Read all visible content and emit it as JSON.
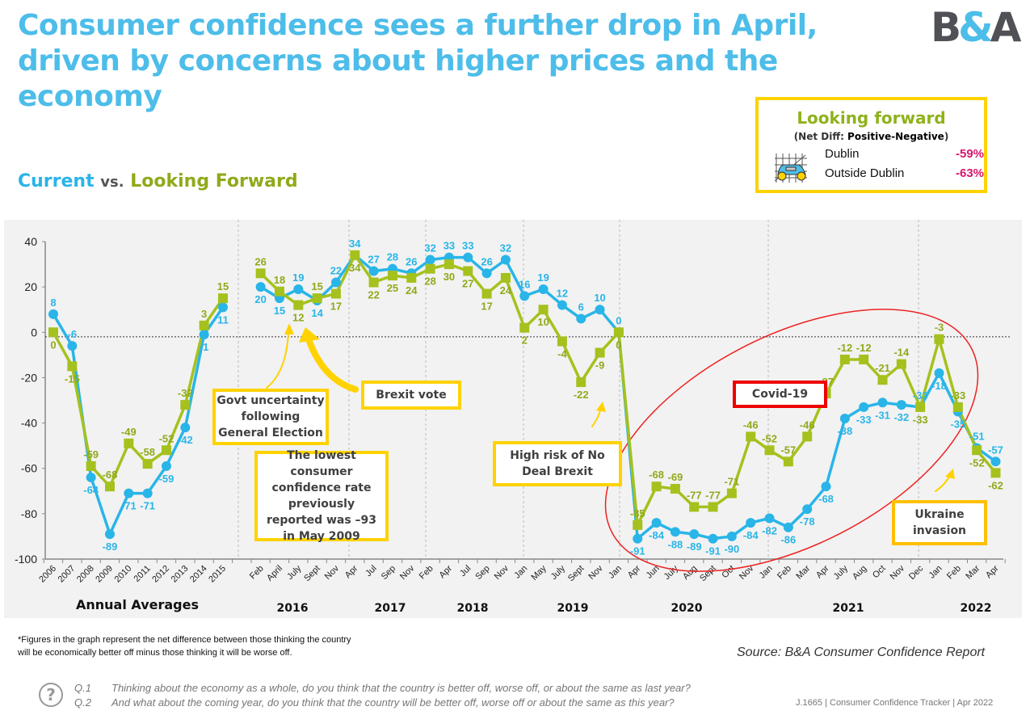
{
  "header": {
    "title": "Consumer confidence sees a further drop in April, driven by concerns about higher prices and the economy",
    "logo": "B&A"
  },
  "legend": {
    "current": "Current",
    "vs": "vs.",
    "forward": "Looking Forward"
  },
  "forward_box": {
    "title": "Looking forward",
    "subtitle_prefix": "(Net Diff: ",
    "subtitle_bold": "Positive-Negative",
    "subtitle_suffix": ")",
    "icon": "car-chart-icon",
    "rows": [
      {
        "label": "Dublin",
        "value": "-59%"
      },
      {
        "label": "Outside Dublin",
        "value": "-63%"
      }
    ]
  },
  "annotations": {
    "govt": "Govt uncertainty following General Election",
    "brexit": "Brexit vote",
    "lowest": "The lowest consumer confidence rate previously reported was –93 in May 2009",
    "nodeal": "High risk of No Deal Brexit",
    "covid": "Covid-19",
    "ukraine": "Ukraine invasion"
  },
  "chart_data": {
    "type": "line",
    "ylim": [
      -100,
      40
    ],
    "yticks": [
      40,
      20,
      0,
      -20,
      -40,
      -60,
      -80,
      -100
    ],
    "grid": false,
    "colors": {
      "current": "#29b5e8",
      "forward": "#a5c11d",
      "forward_label": "#8faa1a"
    },
    "groups": [
      {
        "label": "Annual Averages",
        "categories": [
          "2006",
          "2007",
          "2008",
          "2009",
          "2010",
          "2011",
          "2012",
          "2013",
          "2014",
          "2015"
        ],
        "current": [
          8,
          -6,
          -64,
          -89,
          -71,
          -71,
          -59,
          -42,
          -1,
          11
        ],
        "forward": [
          0,
          -15,
          -59,
          -68,
          -49,
          -58,
          -52,
          -32,
          3,
          15
        ]
      },
      {
        "label": "2016",
        "categories": [
          "Feb",
          "April",
          "July",
          "Sept",
          "Nov"
        ],
        "current": [
          20,
          15,
          19,
          14,
          22
        ],
        "forward": [
          26,
          18,
          12,
          15,
          17
        ]
      },
      {
        "label": "2017",
        "categories": [
          "Apr",
          "Jul",
          "Sep",
          "Nov"
        ],
        "current": [
          34,
          27,
          28,
          26
        ],
        "forward": [
          34,
          22,
          25,
          24
        ]
      },
      {
        "label": "2018",
        "categories": [
          "Feb",
          "Apr",
          "Jul",
          "Sep",
          "Nov"
        ],
        "current": [
          32,
          33,
          33,
          26,
          32
        ],
        "forward": [
          28,
          30,
          27,
          17,
          24
        ]
      },
      {
        "label": "2019",
        "categories": [
          "Jan",
          "May",
          "July",
          "Sept",
          "Nov"
        ],
        "current": [
          16,
          19,
          12,
          6,
          10
        ],
        "forward": [
          2,
          10,
          -4,
          -22,
          -9
        ]
      },
      {
        "label": "2020",
        "categories": [
          "Jan",
          "Apr",
          "Jun",
          "July",
          "Aug",
          "Sept",
          "Oct",
          "Nov"
        ],
        "current": [
          0,
          -91,
          -84,
          -88,
          -89,
          -91,
          -90,
          -84
        ],
        "forward": [
          0,
          -85,
          -68,
          -69,
          -77,
          -77,
          -71,
          -46
        ]
      },
      {
        "label": "2021",
        "categories": [
          "Jan",
          "Feb",
          "Mar",
          "Apr",
          "July",
          "Aug",
          "Oct",
          "Nov",
          "Dec"
        ],
        "current": [
          -82,
          -86,
          -78,
          -68,
          -38,
          -33,
          -31,
          -32,
          -33
        ],
        "forward": [
          -52,
          -57,
          -46,
          -27,
          -12,
          -12,
          -21,
          -14,
          -33
        ]
      },
      {
        "label": "2022",
        "categories": [
          "Jan",
          "Feb",
          "Mar",
          "Apr"
        ],
        "current": [
          -18,
          -35,
          -51,
          -57
        ],
        "forward": [
          -3,
          -33,
          -52,
          -62
        ]
      }
    ]
  },
  "footer": {
    "note1": "*Figures in the graph represent the net difference between those thinking the country",
    "note2": "will be economically better off minus those thinking it will be worse off.",
    "source": "Source: B&A Consumer Confidence Report",
    "q1_num": "Q.1",
    "q1": "Thinking about the economy as a whole, do you think that the country is better off, worse off, or about the same as last year?",
    "q2_num": "Q.2",
    "q2": "And what about the coming year, do you think that the country will be better off, worse off or about the same as this year?",
    "tracker": "J.1665  | Consumer Confidence Tracker |  Apr 2022",
    "help_icon": "question-icon"
  }
}
